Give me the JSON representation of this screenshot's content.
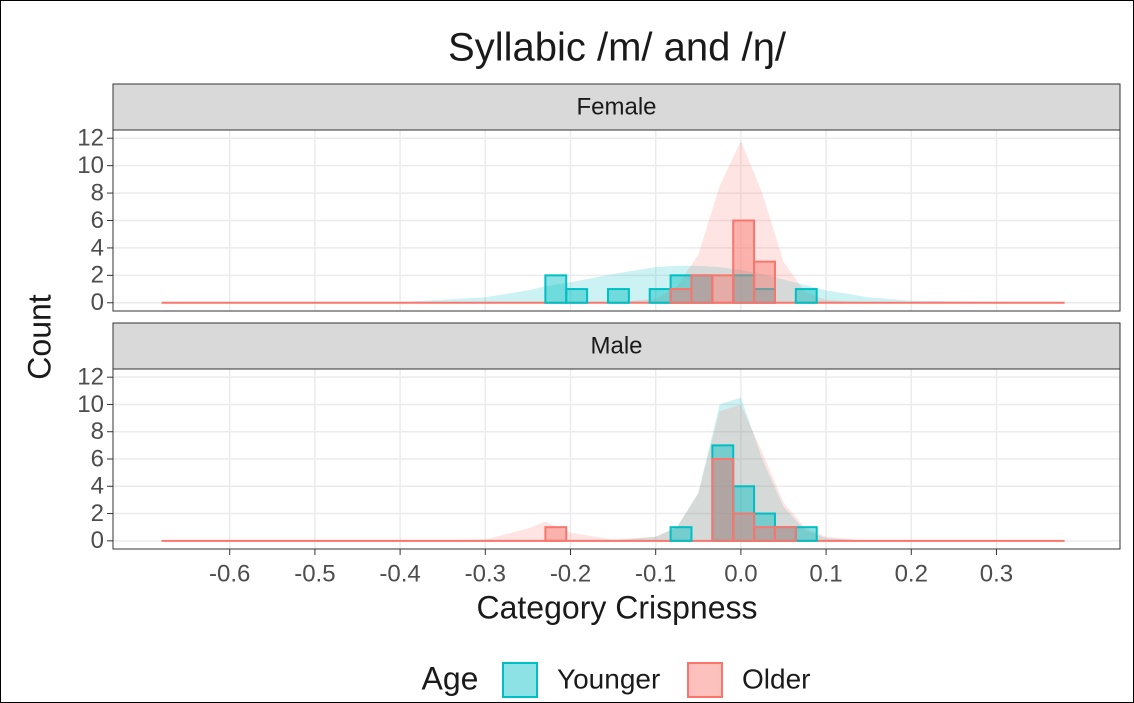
{
  "chart_data": {
    "type": "histogram",
    "title": "Syllabic /m/ and /ŋ/",
    "xlabel": "Category Crispness",
    "ylabel": "Count",
    "legend_title": "Age",
    "series": [
      {
        "name": "Younger",
        "color": "#00BFC4"
      },
      {
        "name": "Older",
        "color": "#F8766D"
      }
    ],
    "xlim": [
      -0.737,
      0.445
    ],
    "xticks": [
      -0.6,
      -0.5,
      -0.4,
      -0.3,
      -0.2,
      -0.1,
      {
        "value": 0,
        "label": "0.0"
      },
      0.1,
      0.2,
      0.3
    ],
    "ylim": [
      -0.6,
      12.6
    ],
    "yticks": [
      0,
      2,
      4,
      6,
      8,
      10,
      12
    ],
    "grid": true,
    "bins": [
      -0.2295,
      -0.205,
      -0.1805,
      -0.156,
      -0.1315,
      -0.107,
      -0.0825,
      -0.058,
      -0.0335,
      -0.009,
      0.0155,
      0.04,
      0.0645,
      0.089
    ],
    "density_x": [
      -0.68,
      -0.4,
      -0.3,
      -0.25,
      -0.23,
      -0.2,
      -0.15,
      -0.1,
      -0.075,
      -0.05,
      -0.025,
      0,
      0.025,
      0.05,
      0.075,
      0.1,
      0.15,
      0.2,
      0.38
    ],
    "panels": [
      {
        "label": "Female",
        "counts": [
          [
            2,
            1,
            0,
            1,
            0,
            1,
            2,
            2,
            0,
            2,
            1,
            0,
            1
          ],
          [
            0,
            0,
            0,
            0,
            0,
            0,
            1,
            2,
            2,
            6,
            3,
            0,
            0
          ]
        ],
        "density": [
          [
            0,
            0.05,
            0.4,
            0.9,
            1.2,
            1.5,
            2.1,
            2.6,
            2.7,
            2.7,
            2.6,
            2.4,
            2.1,
            1.7,
            1.3,
            0.9,
            0.4,
            0.15,
            0
          ],
          [
            0,
            0,
            0,
            0,
            0,
            0,
            0,
            0.3,
            1.2,
            3.5,
            8.5,
            11.8,
            8,
            3,
            0.8,
            0.2,
            0,
            0,
            0
          ]
        ]
      },
      {
        "label": "Male",
        "counts": [
          [
            0,
            0,
            0,
            0,
            0,
            0,
            1,
            0,
            7,
            4,
            2,
            1,
            1
          ],
          [
            1,
            0,
            0,
            0,
            0,
            0,
            0,
            0,
            6,
            2,
            1,
            1,
            0
          ]
        ],
        "density": [
          [
            0,
            0,
            0,
            0,
            0,
            0,
            0,
            0.3,
            1,
            3.5,
            10,
            10.5,
            6,
            2.5,
            0.8,
            0.2,
            0,
            0,
            0
          ],
          [
            0,
            0,
            0.1,
            0.9,
            1.4,
            0.6,
            0.1,
            0.3,
            1,
            3.5,
            9.5,
            10,
            6.5,
            2.8,
            1,
            0.3,
            0,
            0,
            0
          ]
        ]
      }
    ]
  }
}
